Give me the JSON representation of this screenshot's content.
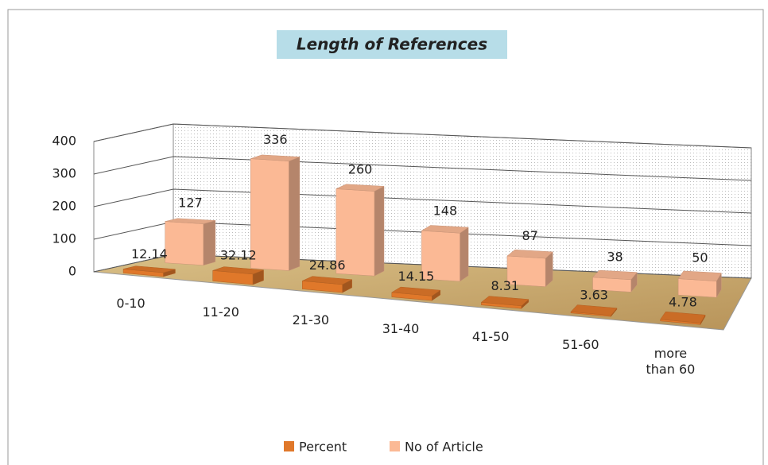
{
  "chart_data": {
    "type": "bar3d",
    "title": "Length of References",
    "categories": [
      "0-10",
      "11-20",
      "21-30",
      "31-40",
      "41-50",
      "51-60",
      "more than 60"
    ],
    "series": [
      {
        "name": "Percent",
        "color": "#e0782a",
        "values": [
          12.14,
          32.12,
          24.86,
          14.15,
          8.31,
          3.63,
          4.78
        ]
      },
      {
        "name": "No of Article",
        "color": "#fbb995",
        "values": [
          127,
          336,
          260,
          148,
          87,
          38,
          50
        ]
      }
    ],
    "ylim": [
      0,
      400
    ],
    "yticks": [
      0,
      100,
      200,
      300,
      400
    ],
    "grid": true,
    "legend": "bottom"
  }
}
